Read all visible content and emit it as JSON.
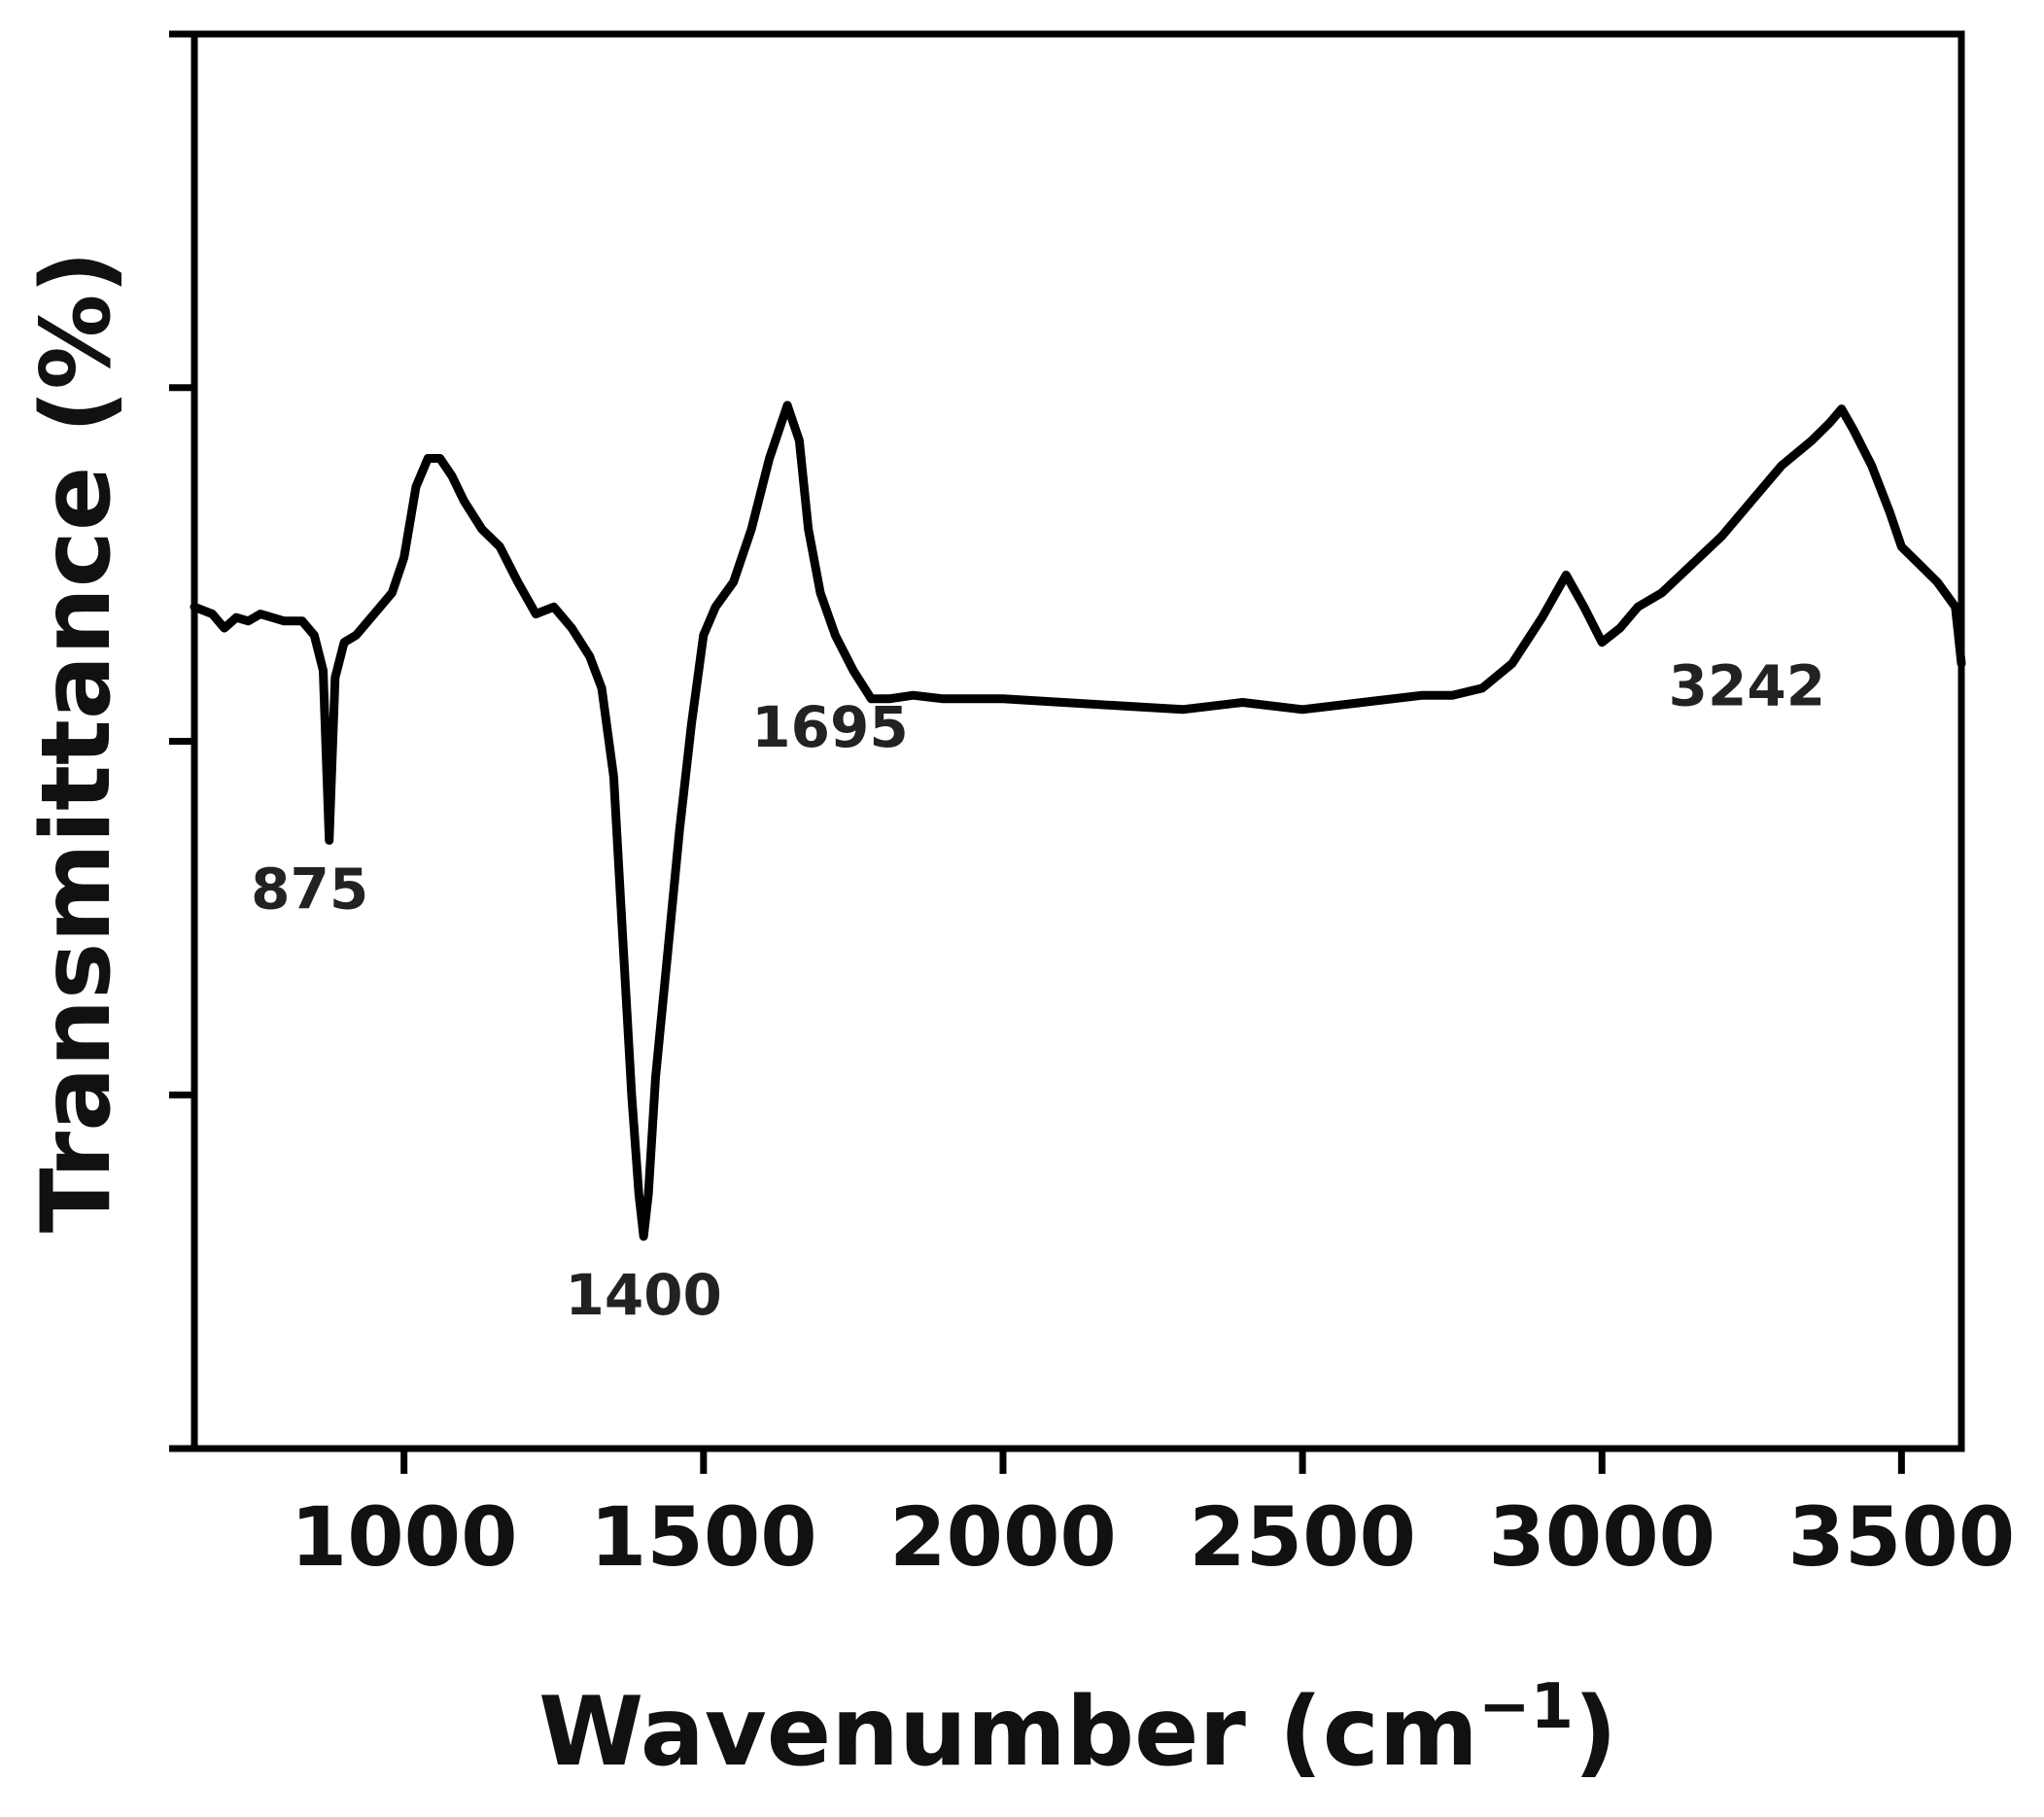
{
  "chart_data": {
    "type": "line",
    "xlabel": "Wavenumber (cm",
    "xlabel_sup": "−1",
    "xlabel_suffix": ")",
    "ylabel": "Transmittance (%)",
    "xlim": [
      650,
      3600
    ],
    "ylim": [
      0,
      4
    ],
    "x_ticks": [
      1000,
      1500,
      2000,
      2500,
      3000,
      3500
    ],
    "y_ticks": [
      0,
      1,
      2,
      3,
      4
    ],
    "show_y_tick_labels": false,
    "grid": false,
    "legend": "none",
    "line_color": "#000000",
    "series": [
      {
        "x": [
          650,
          680,
          700,
          720,
          740,
          760,
          780,
          800,
          830,
          850,
          865,
          875,
          885,
          900,
          920,
          950,
          980,
          1000,
          1020,
          1040,
          1060,
          1080,
          1100,
          1130,
          1160,
          1190,
          1220,
          1250,
          1280,
          1310,
          1330,
          1350,
          1365,
          1380,
          1392,
          1400,
          1408,
          1420,
          1440,
          1460,
          1480,
          1500,
          1520,
          1550,
          1580,
          1610,
          1640,
          1660,
          1675,
          1695,
          1720,
          1750,
          1780,
          1810,
          1850,
          1900,
          1950,
          2000,
          2100,
          2200,
          2300,
          2400,
          2500,
          2600,
          2700,
          2750,
          2800,
          2850,
          2900,
          2940,
          2970,
          3000,
          3030,
          3060,
          3100,
          3150,
          3200,
          3250,
          3300,
          3350,
          3380,
          3400,
          3420,
          3450,
          3480,
          3500,
          3530,
          3560,
          3590,
          3600
        ],
        "y": [
          2.38,
          2.36,
          2.32,
          2.35,
          2.34,
          2.36,
          2.35,
          2.34,
          2.34,
          2.3,
          2.2,
          1.72,
          2.18,
          2.28,
          2.3,
          2.36,
          2.42,
          2.52,
          2.72,
          2.8,
          2.8,
          2.75,
          2.68,
          2.6,
          2.55,
          2.45,
          2.36,
          2.38,
          2.32,
          2.24,
          2.15,
          1.9,
          1.45,
          1.0,
          0.72,
          0.6,
          0.72,
          1.05,
          1.4,
          1.75,
          2.05,
          2.3,
          2.38,
          2.45,
          2.6,
          2.8,
          2.95,
          2.85,
          2.6,
          2.42,
          2.3,
          2.2,
          2.12,
          2.12,
          2.13,
          2.12,
          2.12,
          2.12,
          2.11,
          2.1,
          2.09,
          2.11,
          2.09,
          2.11,
          2.13,
          2.13,
          2.15,
          2.22,
          2.35,
          2.47,
          2.38,
          2.28,
          2.32,
          2.38,
          2.42,
          2.5,
          2.58,
          2.68,
          2.78,
          2.85,
          2.9,
          2.94,
          2.88,
          2.78,
          2.65,
          2.55,
          2.5,
          2.45,
          2.38,
          2.22
        ]
      }
    ],
    "annotations": [
      {
        "text": "875",
        "x": 875,
        "y": 1.72
      },
      {
        "text": "1400",
        "x": 1400,
        "y": 0.6
      },
      {
        "text": "1695",
        "x": 1695,
        "y": 2.2
      },
      {
        "text": "3242",
        "x": 3242,
        "y": 2.3
      }
    ]
  }
}
